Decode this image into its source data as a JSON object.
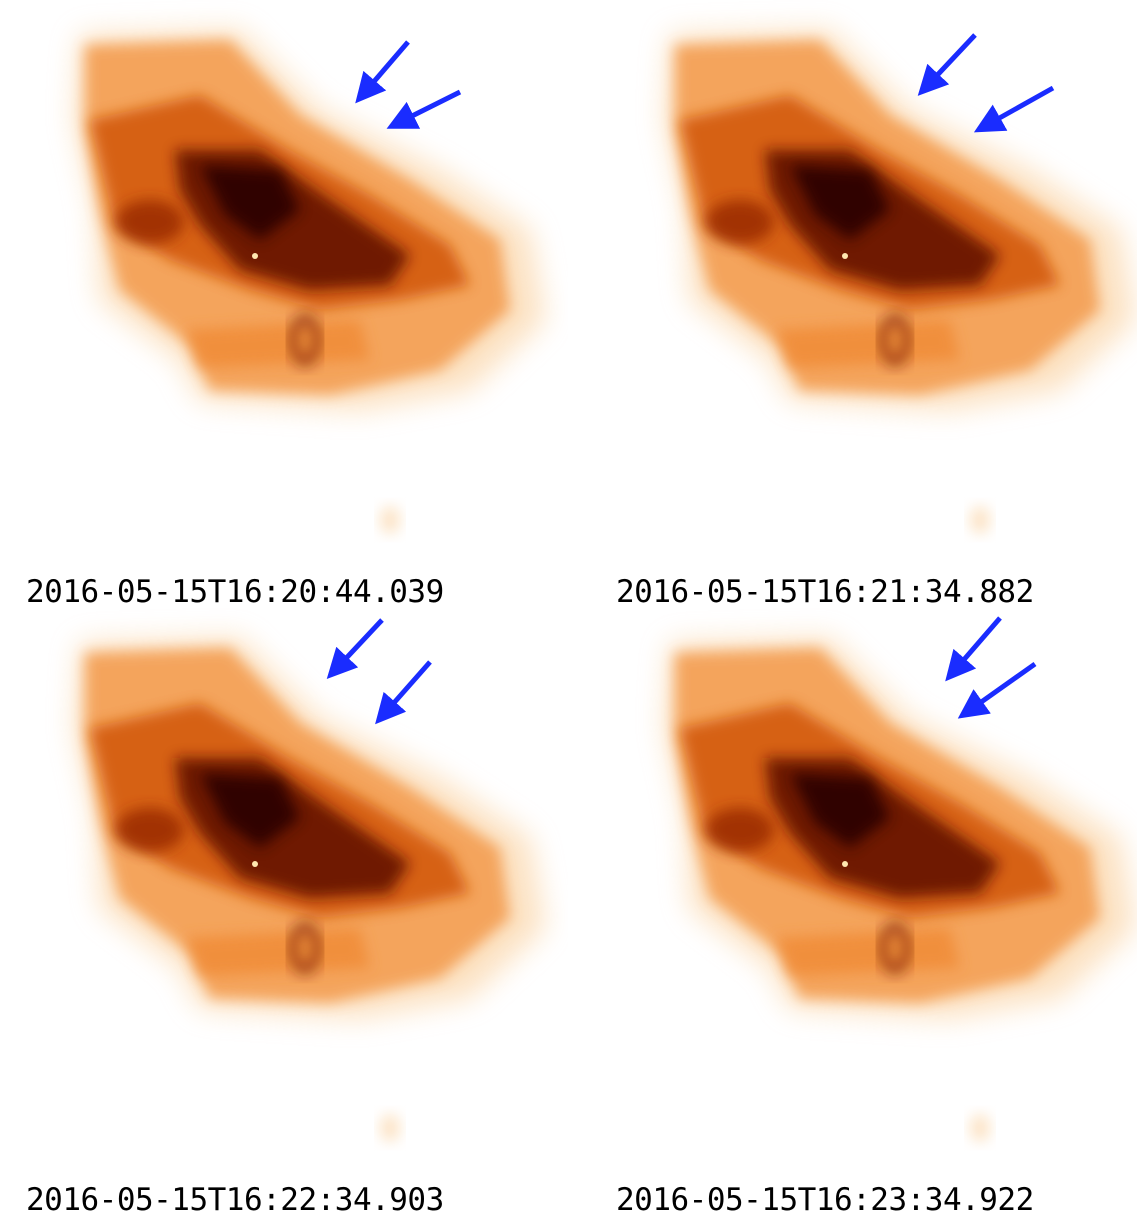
{
  "panels": [
    {
      "timestamp": "2016-05-15T16:20:44.039"
    },
    {
      "timestamp": "2016-05-15T16:21:34.882"
    },
    {
      "timestamp": "2016-05-15T16:22:34.903"
    },
    {
      "timestamp": "2016-05-15T16:23:34.922"
    }
  ],
  "colors": {
    "background": "#ffffff",
    "emission_light": "#f4a55a",
    "emission_mid": "#d35a10",
    "emission_dark": "#3a0500",
    "arrow": "#1a2cff",
    "text": "#000000"
  },
  "icons": [
    "arrow-icon"
  ]
}
